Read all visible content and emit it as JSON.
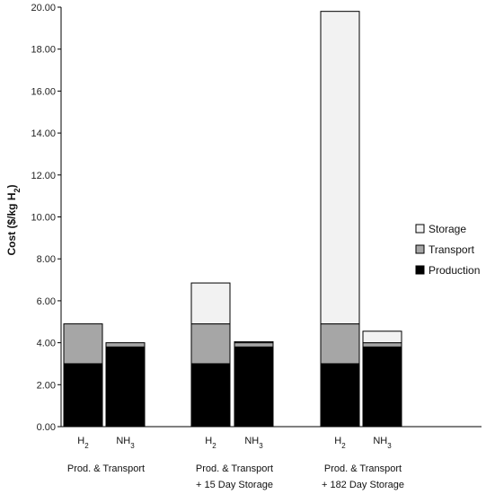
{
  "chart_data": {
    "type": "bar",
    "stacked": true,
    "ylabel": "Cost ($/kg H",
    "ylabel_sub": "2",
    "ylabel_close": ")",
    "ylim": [
      0,
      20
    ],
    "yticks": [
      "0.00",
      "2.00",
      "4.00",
      "6.00",
      "8.00",
      "10.00",
      "12.00",
      "14.00",
      "16.00",
      "18.00",
      "20.00"
    ],
    "grid": false,
    "legend_position": "right",
    "groups": [
      {
        "line1": "Prod. & Transport",
        "line2": ""
      },
      {
        "line1": "Prod. & Transport",
        "line2": "+ 15 Day Storage"
      },
      {
        "line1": "Prod. & Transport",
        "line2": "+ 182 Day Storage"
      }
    ],
    "categories": [
      {
        "base": "H",
        "sub": "2",
        "group": 0
      },
      {
        "base": "NH",
        "sub": "3",
        "group": 0
      },
      {
        "base": "H",
        "sub": "2",
        "group": 1
      },
      {
        "base": "NH",
        "sub": "3",
        "group": 1
      },
      {
        "base": "H",
        "sub": "2",
        "group": 2
      },
      {
        "base": "NH",
        "sub": "3",
        "group": 2
      }
    ],
    "series": [
      {
        "name": "Production",
        "color": "#000000",
        "values": [
          3.0,
          3.8,
          3.0,
          3.8,
          3.0,
          3.8
        ]
      },
      {
        "name": "Transport",
        "color": "#a6a6a6",
        "values": [
          1.9,
          0.2,
          1.9,
          0.2,
          1.9,
          0.2
        ]
      },
      {
        "name": "Storage",
        "color": "#f2f2f2",
        "values": [
          0.0,
          0.0,
          1.95,
          0.05,
          14.9,
          0.55
        ]
      }
    ]
  }
}
